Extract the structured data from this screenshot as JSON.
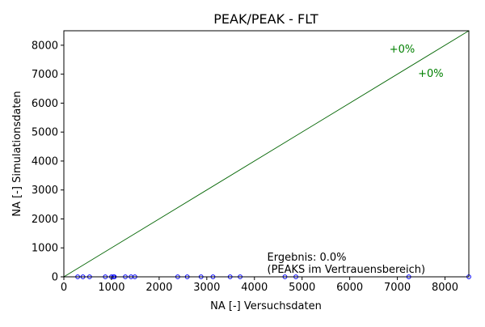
{
  "chart_data": {
    "type": "scatter",
    "title": "PEAK/PEAK - FLT",
    "xlabel": "NA [-] Versuchsdaten",
    "ylabel": "NA [-] Simulationsdaten",
    "xlim": [
      0,
      8500
    ],
    "ylim": [
      0,
      8500
    ],
    "xticks": [
      "0",
      "1000",
      "2000",
      "3000",
      "4000",
      "5000",
      "6000",
      "7000",
      "8000"
    ],
    "yticks": [
      "0",
      "1000",
      "2000",
      "3000",
      "4000",
      "5000",
      "6000",
      "7000",
      "8000"
    ],
    "grid": false,
    "reference_line": {
      "x": [
        0,
        8500
      ],
      "y": [
        0,
        8500
      ],
      "color": "#006400"
    },
    "band_labels": [
      {
        "text": "+0%",
        "x": 7100,
        "y": 7750,
        "color": "#008000"
      },
      {
        "text": "+0%",
        "x": 7700,
        "y": 6900,
        "color": "#008000"
      }
    ],
    "annotation": {
      "lines": [
        "Ergebnis: 0.0%",
        "(PEAKS im Vertrauensbereich)"
      ],
      "x": 4250,
      "y": 0
    },
    "series": [
      {
        "color": "#0000ff",
        "marker": "circle-open",
        "points": [
          [
            290,
            0
          ],
          [
            400,
            0
          ],
          [
            540,
            0
          ],
          [
            870,
            0
          ],
          [
            1000,
            0
          ],
          [
            1040,
            0
          ],
          [
            1060,
            0
          ],
          [
            1290,
            0
          ],
          [
            1410,
            0
          ],
          [
            1490,
            0
          ],
          [
            2390,
            0
          ],
          [
            2590,
            0
          ],
          [
            2880,
            0
          ],
          [
            3130,
            0
          ],
          [
            3490,
            0
          ],
          [
            3700,
            0
          ],
          [
            4640,
            0
          ],
          [
            4870,
            0
          ],
          [
            7240,
            0
          ],
          [
            8500,
            0
          ]
        ]
      }
    ]
  }
}
